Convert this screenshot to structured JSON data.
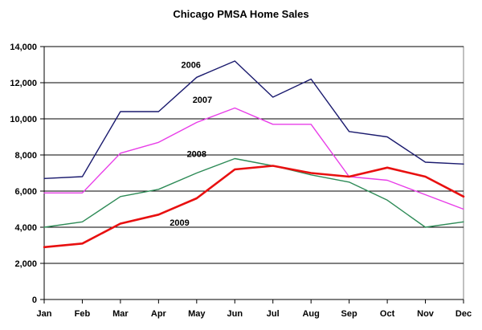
{
  "chart_data": {
    "type": "line",
    "title": "Chicago PMSA Home Sales",
    "xlabel": "",
    "ylabel": "",
    "categories": [
      "Jan",
      "Feb",
      "Mar",
      "Apr",
      "May",
      "Jun",
      "Jul",
      "Aug",
      "Sep",
      "Oct",
      "Nov",
      "Dec"
    ],
    "ylim": [
      0,
      14000
    ],
    "yticks": [
      0,
      2000,
      4000,
      6000,
      8000,
      10000,
      12000,
      14000
    ],
    "ytick_labels": [
      "0",
      "2,000",
      "4,000",
      "6,000",
      "8,000",
      "10,000",
      "12,000",
      "14,000"
    ],
    "grid": true,
    "legend": "inline labels",
    "series": [
      {
        "name": "2006",
        "color": "#1a1a6e",
        "width": 1.4,
        "values": [
          6700,
          6800,
          10400,
          10400,
          12300,
          13200,
          11200,
          12200,
          9300,
          9000,
          7600,
          7500
        ]
      },
      {
        "name": "2007",
        "color": "#e83ee8",
        "width": 1.4,
        "values": [
          5900,
          5900,
          8100,
          8700,
          9800,
          10600,
          9700,
          9700,
          6800,
          6600,
          5800,
          5000
        ]
      },
      {
        "name": "2008",
        "color": "#2e8b57",
        "width": 1.4,
        "values": [
          4000,
          4300,
          5700,
          6100,
          7000,
          7800,
          7400,
          6900,
          6500,
          5500,
          4000,
          4300
        ]
      },
      {
        "name": "2009",
        "color": "#e81010",
        "width": 2.6,
        "values": [
          2900,
          3100,
          4200,
          4700,
          5600,
          7200,
          7400,
          7000,
          6800,
          7300,
          6800,
          5700
        ]
      }
    ]
  }
}
